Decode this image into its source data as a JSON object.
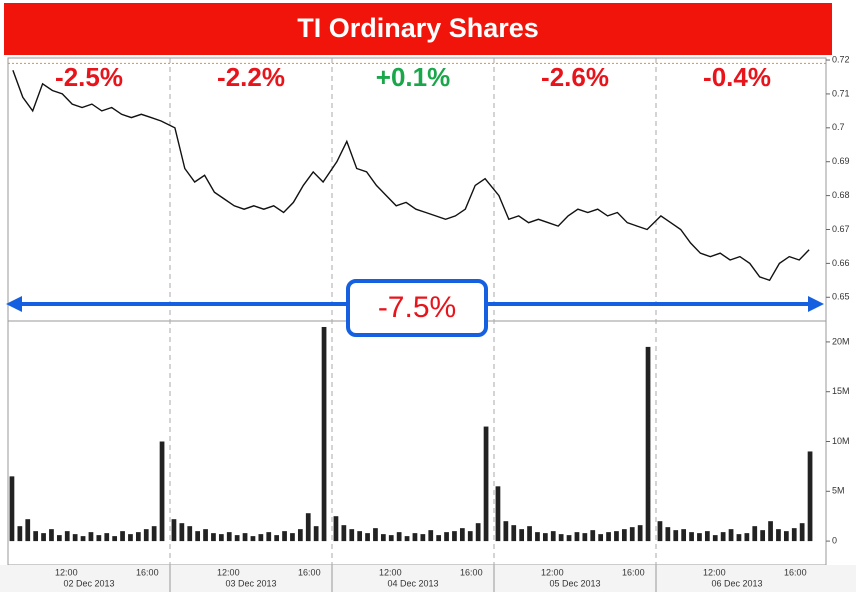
{
  "title": "TI Ordinary Shares",
  "days": [
    "02 Dec 2013",
    "03 Dec 2013",
    "04 Dec 2013",
    "05 Dec 2013",
    "06 Dec 2013"
  ],
  "time_labels": [
    "12:00",
    "16:00"
  ],
  "annotations": [
    {
      "text": "-2.5%",
      "color": "#e8141b"
    },
    {
      "text": "-2.2%",
      "color": "#e8141b"
    },
    {
      "text": "+0.1%",
      "color": "#1aa64a"
    },
    {
      "text": "-2.6%",
      "color": "#e8141b"
    },
    {
      "text": "-0.4%",
      "color": "#e8141b"
    }
  ],
  "total_change": {
    "text": "-7.5%",
    "color": "#e8141b",
    "arrow_color": "#1560e0"
  },
  "chart_data": [
    {
      "type": "line",
      "color": "#111111",
      "ref_line": 0.719,
      "ref_color": "#f08c28",
      "values": [
        0.717,
        0.709,
        0.705,
        0.713,
        0.711,
        0.71,
        0.707,
        0.706,
        0.707,
        0.705,
        0.706,
        0.704,
        0.703,
        0.704,
        0.703,
        0.702,
        0.7,
        0.688,
        0.684,
        0.686,
        0.681,
        0.679,
        0.677,
        0.676,
        0.677,
        0.676,
        0.677,
        0.675,
        0.678,
        0.683,
        0.687,
        0.684,
        0.69,
        0.696,
        0.688,
        0.687,
        0.683,
        0.68,
        0.677,
        0.678,
        0.676,
        0.675,
        0.674,
        0.673,
        0.674,
        0.676,
        0.683,
        0.685,
        0.68,
        0.673,
        0.674,
        0.672,
        0.673,
        0.672,
        0.671,
        0.674,
        0.676,
        0.675,
        0.676,
        0.674,
        0.675,
        0.672,
        0.671,
        0.67,
        0.674,
        0.672,
        0.67,
        0.666,
        0.663,
        0.662,
        0.663,
        0.661,
        0.662,
        0.66,
        0.656,
        0.655,
        0.66,
        0.662,
        0.661,
        0.664
      ],
      "ylim": [
        0.643,
        0.7206
      ],
      "yticks": [
        0.72,
        0.71,
        0.7,
        0.69,
        0.68,
        0.67,
        0.66,
        0.65
      ]
    },
    {
      "type": "bar",
      "color": "#222222",
      "values": [
        6.5,
        1.5,
        2.2,
        1.0,
        0.8,
        1.2,
        0.6,
        1.0,
        0.7,
        0.5,
        0.9,
        0.6,
        0.8,
        0.5,
        1.0,
        0.7,
        0.9,
        1.2,
        1.5,
        10.0,
        2.2,
        1.8,
        1.5,
        1.0,
        1.2,
        0.8,
        0.7,
        0.9,
        0.6,
        0.8,
        0.5,
        0.7,
        0.9,
        0.6,
        1.0,
        0.8,
        1.2,
        2.8,
        1.5,
        21.5,
        2.5,
        1.6,
        1.2,
        1.0,
        0.8,
        1.3,
        0.7,
        0.6,
        0.9,
        0.5,
        0.8,
        0.7,
        1.1,
        0.6,
        0.9,
        1.0,
        1.3,
        1.0,
        1.8,
        11.5,
        5.5,
        2.0,
        1.6,
        1.2,
        1.5,
        0.9,
        0.8,
        1.0,
        0.7,
        0.6,
        0.9,
        0.8,
        1.1,
        0.7,
        0.9,
        1.0,
        1.2,
        1.4,
        1.6,
        19.5,
        2.0,
        1.4,
        1.1,
        1.2,
        0.9,
        0.8,
        1.0,
        0.6,
        0.9,
        1.2,
        0.7,
        0.8,
        1.5,
        1.1,
        2.0,
        1.2,
        1.0,
        1.3,
        1.8,
        9.0
      ],
      "ylim": [
        -2.4,
        22.1
      ],
      "yticks": [
        {
          "value": 20,
          "label": "20M"
        },
        {
          "value": 15,
          "label": "15M"
        },
        {
          "value": 10,
          "label": "10M"
        },
        {
          "value": 5,
          "label": "5M"
        },
        0
      ]
    }
  ]
}
